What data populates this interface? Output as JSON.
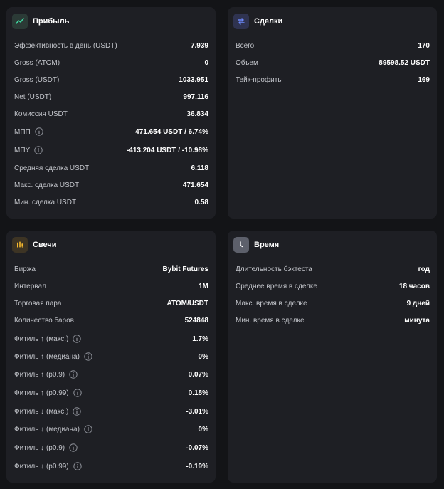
{
  "cards": {
    "profit": {
      "title": "Прибыль",
      "rows": [
        {
          "label": "Эффективность в день (USDT)",
          "value": "7.939"
        },
        {
          "label": "Gross (ATOM)",
          "value": "0"
        },
        {
          "label": "Gross (USDT)",
          "value": "1033.951"
        },
        {
          "label": "Net (USDT)",
          "value": "997.116"
        },
        {
          "label": "Комиссия USDT",
          "value": "36.834"
        },
        {
          "label": "МПП",
          "value": "471.654 USDT / 6.74%"
        },
        {
          "label": "МПУ",
          "value": "-413.204 USDT / -10.98%"
        },
        {
          "label": "Средняя сделка USDT",
          "value": "6.118"
        },
        {
          "label": "Макс. сделка USDT",
          "value": "471.654"
        },
        {
          "label": "Мин. сделка USDT",
          "value": "0.58"
        }
      ]
    },
    "trades": {
      "title": "Сделки",
      "rows": [
        {
          "label": "Всего",
          "value": "170"
        },
        {
          "label": "Объем",
          "value": "89598.52 USDT"
        },
        {
          "label": "Тейк-профиты",
          "value": "169"
        }
      ]
    },
    "candles": {
      "title": "Свечи",
      "rows": [
        {
          "label": "Биржа",
          "value": "Bybit Futures"
        },
        {
          "label": "Интервал",
          "value": "1M"
        },
        {
          "label": "Торговая пара",
          "value": "ATOM/USDT"
        },
        {
          "label": "Количество баров",
          "value": "524848"
        },
        {
          "label": "Фитиль ↑ (макс.)",
          "value": "1.7%"
        },
        {
          "label": "Фитиль ↑ (медиана)",
          "value": "0%"
        },
        {
          "label": "Фитиль ↑ (p0.9)",
          "value": "0.07%"
        },
        {
          "label": "Фитиль ↑ (p0.99)",
          "value": "0.18%"
        },
        {
          "label": "Фитиль ↓ (макс.)",
          "value": "-3.01%"
        },
        {
          "label": "Фитиль ↓ (медиана)",
          "value": "0%"
        },
        {
          "label": "Фитиль ↓ (p0.9)",
          "value": "-0.07%"
        },
        {
          "label": "Фитиль ↓ (p0.99)",
          "value": "-0.19%"
        }
      ]
    },
    "time": {
      "title": "Время",
      "rows": [
        {
          "label": "Длительность бэктеста",
          "value": "год"
        },
        {
          "label": "Среднее время в сделке",
          "value": "18 часов"
        },
        {
          "label": "Макс. время в сделке",
          "value": "9 дней"
        },
        {
          "label": "Мин. время в сделке",
          "value": "минута"
        }
      ]
    }
  },
  "colors": {
    "profit_icon_bg": "#2b3a36",
    "profit_icon_fg": "#3fd6a0",
    "trades_icon_bg": "#2f3350",
    "trades_icon_fg": "#6e8bff",
    "candles_icon_bg": "#3d3424",
    "candles_icon_fg": "#f5b82e",
    "time_icon_bg": "#5d606b",
    "time_icon_fg": "#ffffff"
  }
}
